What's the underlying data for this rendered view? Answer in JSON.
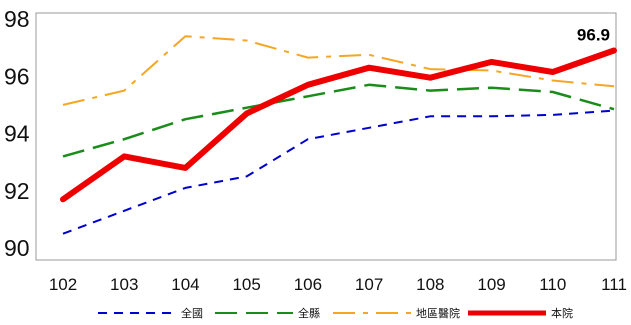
{
  "chart_data": {
    "type": "line",
    "title": "",
    "xlabel": "",
    "ylabel": "",
    "categories": [
      "102",
      "103",
      "104",
      "105",
      "106",
      "107",
      "108",
      "109",
      "110",
      "111"
    ],
    "yticks": [
      "90",
      "92",
      "94",
      "96",
      "98"
    ],
    "ylim": [
      90,
      98
    ],
    "grid": false,
    "legend_position": "bottom",
    "series": [
      {
        "name": "全國",
        "color": "#0000cc",
        "dash": "dashed",
        "values": [
          90.5,
          91.3,
          92.1,
          92.5,
          93.8,
          94.2,
          94.6,
          94.6,
          94.65,
          94.8
        ]
      },
      {
        "name": "全縣",
        "color": "#1a8c1a",
        "dash": "longdash",
        "values": [
          93.2,
          93.8,
          94.5,
          94.9,
          95.3,
          95.7,
          95.5,
          95.6,
          95.45,
          94.85
        ]
      },
      {
        "name": "地區醫院",
        "color": "#f5a623",
        "dash": "dashdot",
        "values": [
          95.0,
          95.5,
          97.4,
          97.25,
          96.65,
          96.75,
          96.25,
          96.2,
          95.85,
          95.65
        ]
      },
      {
        "name": "本院",
        "color": "#ee0000",
        "dash": "solid",
        "values": [
          91.7,
          93.2,
          92.8,
          94.7,
          95.7,
          96.3,
          95.95,
          96.5,
          96.15,
          96.9
        ]
      }
    ],
    "annotations": [
      {
        "text": "96.9",
        "series": "本院",
        "category": "111"
      }
    ]
  }
}
